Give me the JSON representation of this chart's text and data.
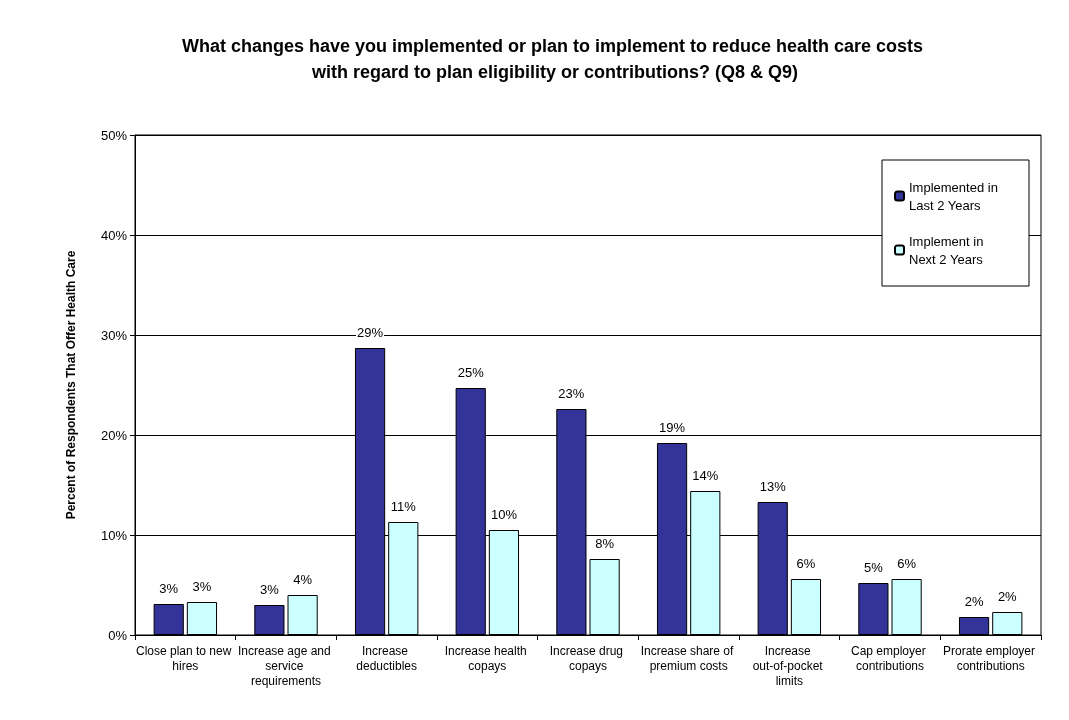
{
  "chart_data": {
    "type": "bar",
    "title": "What changes have you implemented or plan to implement to reduce health care costs with regard to plan eligibility or contributions? (Q8 & Q9)",
    "ylabel": "Percent of Respondents That Offer Health Care",
    "categories": [
      "Close plan to new hires",
      "Increase age and service requirements",
      "Increase deductibles",
      "Increase health copays",
      "Increase drug copays",
      "Increase share of premium costs",
      "Increase out-of-pocket limits",
      "Cap employer contributions",
      "Prorate employer contributions"
    ],
    "series": [
      {
        "name": "Implemented in Last 2 Years",
        "color": "#333399",
        "values": [
          3.1,
          3.0,
          28.7,
          24.7,
          22.6,
          19.2,
          13.3,
          5.2,
          1.8
        ],
        "value_labels": [
          "3%",
          "3%",
          "29%",
          "25%",
          "23%",
          "19%",
          "13%",
          "5%",
          "2%"
        ]
      },
      {
        "name": "Implement in Next 2 Years",
        "color": "#ccffff",
        "values": [
          3.3,
          4.0,
          11.3,
          10.5,
          7.6,
          14.4,
          5.6,
          5.6,
          2.3
        ],
        "value_labels": [
          "3%",
          "4%",
          "11%",
          "10%",
          "8%",
          "14%",
          "6%",
          "6%",
          "2%"
        ]
      }
    ],
    "ylim": [
      0,
      50
    ],
    "yticks": [
      {
        "value": 0,
        "label": "0%"
      },
      {
        "value": 10,
        "label": "10%"
      },
      {
        "value": 20,
        "label": "20%"
      },
      {
        "value": 30,
        "label": "30%"
      },
      {
        "value": 40,
        "label": "40%"
      },
      {
        "value": 50,
        "label": "50%"
      }
    ],
    "grid": "y",
    "legend": "top right"
  }
}
